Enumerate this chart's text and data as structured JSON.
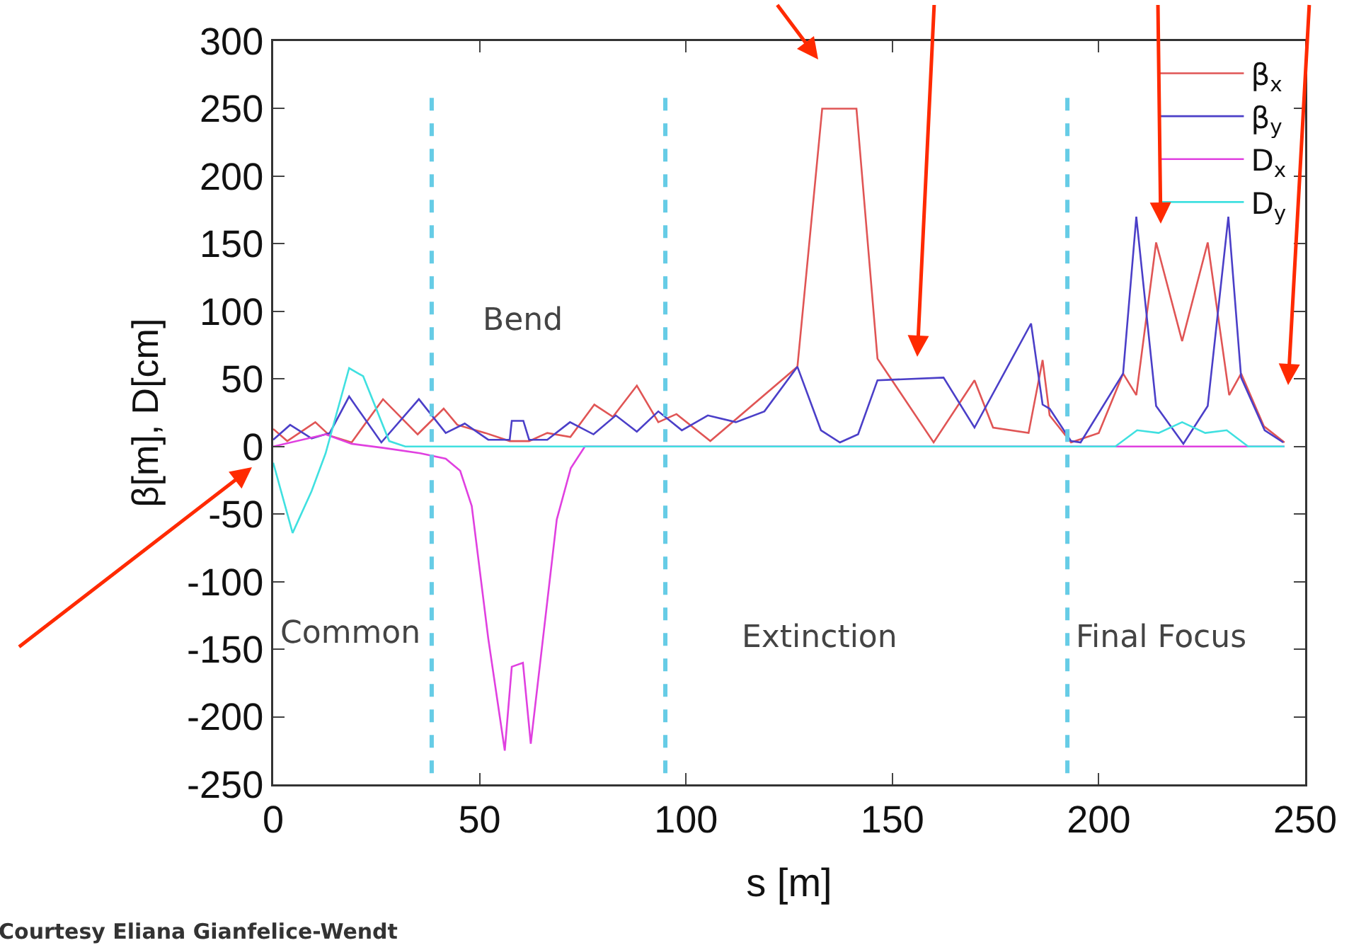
{
  "chart_data": {
    "type": "line",
    "xlabel": "s [m]",
    "ylabel": "β[m], D[cm]",
    "xlim": [
      0,
      250
    ],
    "ylim": [
      -250,
      300
    ],
    "xticks": [
      0,
      50,
      100,
      150,
      200,
      250
    ],
    "yticks": [
      -250,
      -200,
      -150,
      -100,
      -50,
      0,
      50,
      100,
      150,
      200,
      250,
      300
    ],
    "grid": false,
    "legend": "top right",
    "line_style": "solid",
    "marker": "none",
    "series": [
      {
        "name": "β$_{x}$",
        "color": "#e05555",
        "x": [
          0,
          3.4,
          10.2,
          13.7,
          19,
          26.6,
          35,
          41.3,
          44.6,
          51.4,
          57.3,
          62,
          66.4,
          72,
          77.8,
          82.3,
          88.1,
          93.3,
          97.7,
          105.9,
          127,
          133,
          141.3,
          146.4,
          160,
          169.9,
          174.4,
          183,
          186.4,
          188.1,
          193.3,
          200,
          205.9,
          209.1,
          213.9,
          220.2,
          226.4,
          231.6,
          234.5,
          240,
          245
        ],
        "values": [
          13,
          4,
          18,
          8,
          3,
          35,
          9,
          28,
          16,
          10,
          4,
          4,
          10,
          7,
          31,
          22,
          45,
          18,
          24,
          4,
          59,
          250,
          250,
          65,
          3,
          49,
          14,
          10,
          64,
          23,
          3,
          10,
          54,
          38,
          151,
          78,
          151,
          38,
          54,
          15,
          3
        ]
      },
      {
        "name": "β$_{y}$",
        "color": "#4b3fc8",
        "x": [
          0,
          4.1,
          9.3,
          13.7,
          18.4,
          26.2,
          35.3,
          41.8,
          46.4,
          52.1,
          57.3,
          57.8,
          60.6,
          62,
          66.4,
          71.9,
          77.6,
          83,
          88.1,
          93.3,
          99,
          105.3,
          112.1,
          119,
          127,
          132.7,
          137.3,
          141.7,
          146.4,
          162.4,
          169.9,
          183.6,
          186.4,
          188.1,
          193.3,
          195.6,
          205.9,
          209.1,
          213.9,
          220.5,
          226.4,
          231.4,
          234.5,
          240.2,
          244.7
        ],
        "values": [
          5,
          16,
          6,
          10,
          37,
          3,
          35,
          10,
          17,
          5,
          5,
          19,
          19,
          5,
          5,
          18,
          9,
          23,
          11,
          26,
          12,
          23,
          18,
          26,
          59,
          12,
          3,
          9,
          49,
          51,
          14,
          91,
          31,
          28,
          4,
          3,
          54,
          170,
          30,
          2,
          30,
          170,
          51,
          12,
          3
        ]
      },
      {
        "name": "D$_{x}$",
        "color": "#e040e0",
        "x": [
          0,
          12.7,
          19,
          26.6,
          35.6,
          41.8,
          45.3,
          48.1,
          52.1,
          56.1,
          57.8,
          60.5,
          62.4,
          68.7,
          72.1,
          75.5,
          245
        ],
        "values": [
          0,
          9,
          2,
          -1,
          -5,
          -9,
          -18,
          -44,
          -142,
          -225,
          -163,
          -160,
          -220,
          -54,
          -16,
          0,
          0
        ]
      },
      {
        "name": "D$_{y}$",
        "color": "#40e0e0",
        "x": [
          0,
          4.7,
          9.3,
          12.7,
          18.4,
          21.8,
          28.1,
          32,
          204,
          209.3,
          214.5,
          220.2,
          225.8,
          231,
          236.2,
          245
        ],
        "values": [
          -12,
          -64,
          -33,
          -5,
          58,
          52,
          4,
          0,
          0,
          12,
          10,
          18,
          10,
          12,
          0,
          0
        ]
      }
    ],
    "ref_lines": [
      {
        "axis": "x",
        "value": 38.4,
        "color": "#66cce6",
        "line_style": "dashed"
      },
      {
        "axis": "x",
        "value": 95,
        "color": "#66cce6",
        "line_style": "dashed"
      },
      {
        "axis": "x",
        "value": 192.4,
        "color": "#66cce6",
        "line_style": "dashed"
      }
    ],
    "annotations": [
      "Common",
      "Bend",
      "Extinction",
      "Final Focus",
      "Courtesy Eliana Gianfelice-Wendt"
    ]
  }
}
